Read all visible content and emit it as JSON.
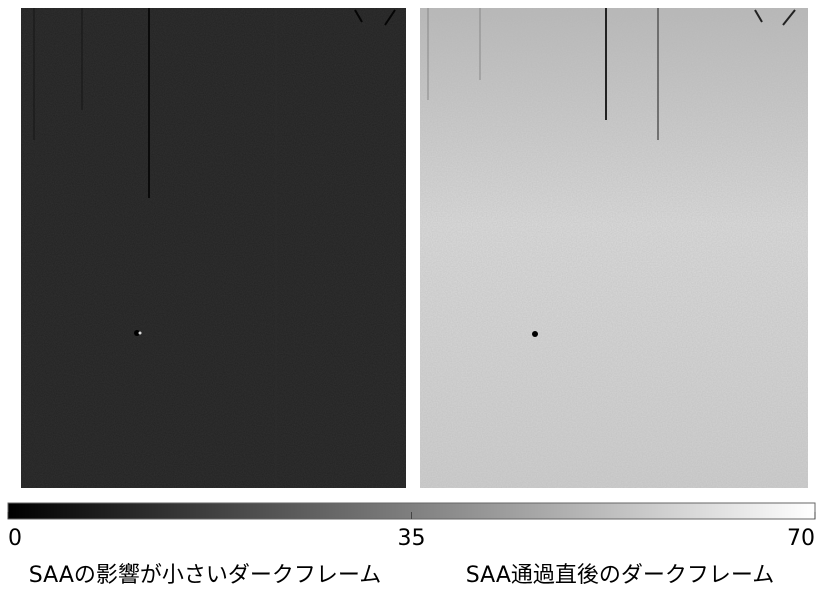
{
  "colorbar": {
    "range": [
      0,
      70
    ],
    "ticks": [
      0,
      35,
      70
    ]
  },
  "panels": [
    {
      "caption": "SAAの影響が小さいダークフレーム"
    },
    {
      "caption": "SAA通過直後のダークフレーム"
    }
  ]
}
